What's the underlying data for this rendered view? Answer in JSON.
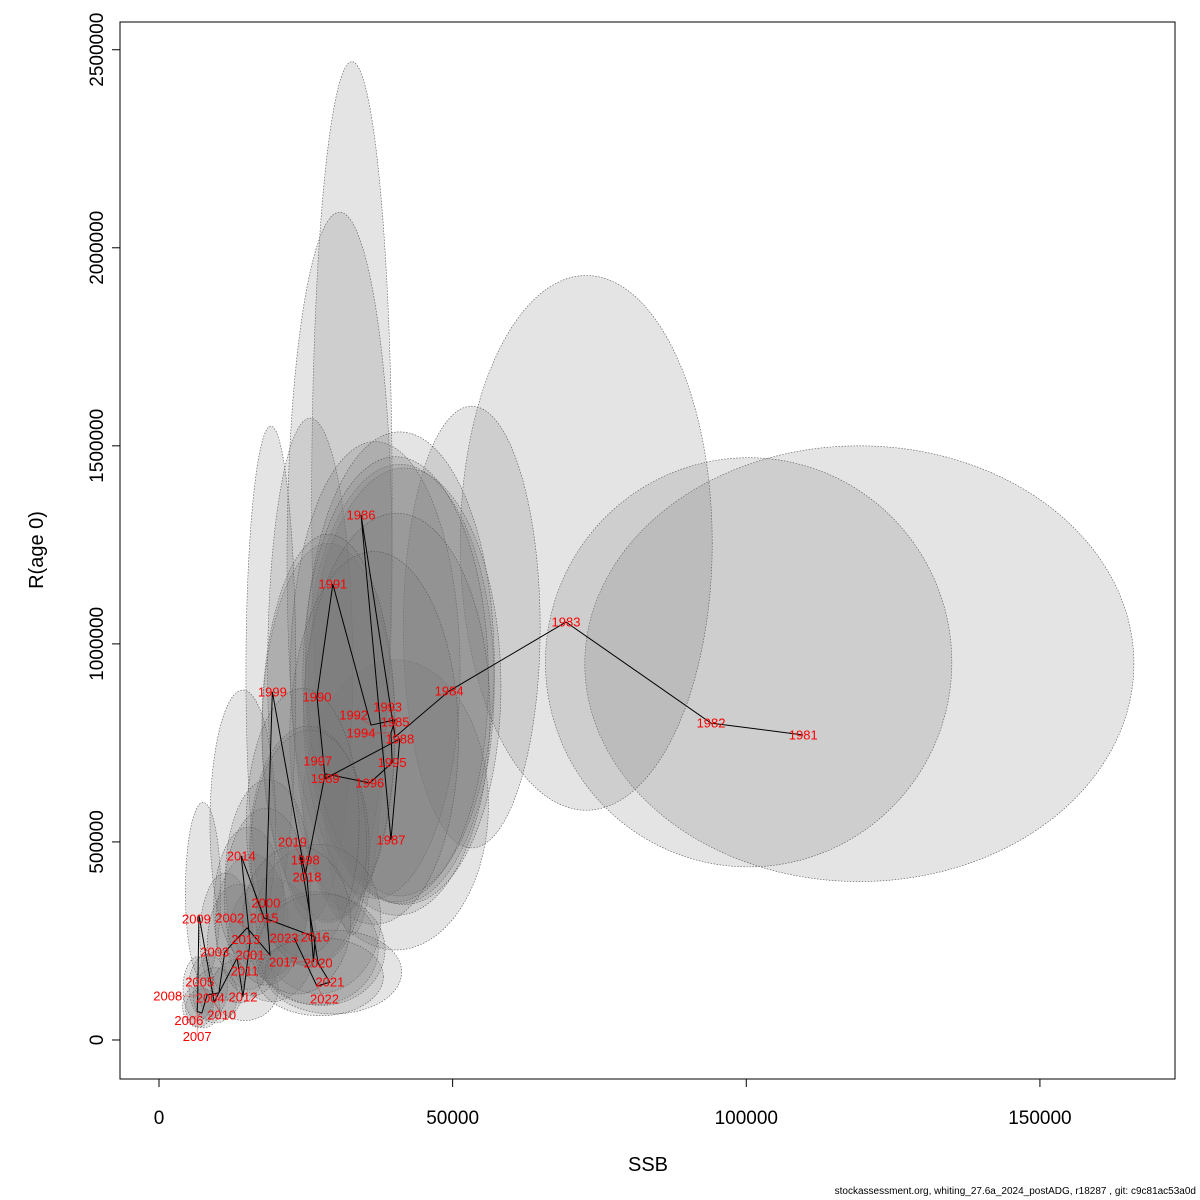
{
  "chart_data": {
    "type": "scatter",
    "xlabel": "SSB",
    "ylabel": "R(age 0)",
    "xlim": [
      -6640,
      173000
    ],
    "ylim": [
      -98500,
      2570000
    ],
    "xticks": [
      0,
      50000,
      100000,
      150000
    ],
    "xtick_labels": [
      "0",
      "50000",
      "100000",
      "150000"
    ],
    "yticks": [
      0,
      500000,
      1000000,
      1500000,
      2000000,
      2500000
    ],
    "ytick_labels": [
      "0",
      "500000",
      "1000000",
      "1500000",
      "2000000",
      "2500000"
    ],
    "grid": false,
    "points": [
      {
        "year": "1981",
        "ssb": 109700,
        "r": 770000
      },
      {
        "year": "1982",
        "ssb": 94000,
        "r": 800000
      },
      {
        "year": "1983",
        "ssb": 69300,
        "r": 1055000
      },
      {
        "year": "1984",
        "ssb": 49400,
        "r": 881000
      },
      {
        "year": "1985",
        "ssb": 40200,
        "r": 765000
      },
      {
        "year": "1986",
        "ssb": 34400,
        "r": 1326000
      },
      {
        "year": "1987",
        "ssb": 39500,
        "r": 505000
      },
      {
        "year": "1988",
        "ssb": 41000,
        "r": 760000
      },
      {
        "year": "1989",
        "ssb": 28300,
        "r": 660000
      },
      {
        "year": "1990",
        "ssb": 26900,
        "r": 866000
      },
      {
        "year": "1991",
        "ssb": 29600,
        "r": 1151000
      },
      {
        "year": "1992",
        "ssb": 36100,
        "r": 795000
      },
      {
        "year": "1993",
        "ssb": 40200,
        "r": 808000
      },
      {
        "year": "1994",
        "ssb": 39500,
        "r": 775000
      },
      {
        "year": "1995",
        "ssb": 39700,
        "r": 700000
      },
      {
        "year": "1996",
        "ssb": 35900,
        "r": 649000
      },
      {
        "year": "1997",
        "ssb": 28300,
        "r": 672000
      },
      {
        "year": "1998",
        "ssb": 24900,
        "r": 417000
      },
      {
        "year": "1999",
        "ssb": 19300,
        "r": 879000
      },
      {
        "year": "2000",
        "ssb": 18200,
        "r": 346000
      },
      {
        "year": "2001",
        "ssb": 18900,
        "r": 215000
      },
      {
        "year": "2002",
        "ssb": 15000,
        "r": 283000
      },
      {
        "year": "2003",
        "ssb": 11200,
        "r": 222000
      },
      {
        "year": "2004",
        "ssb": 10200,
        "r": 119000
      },
      {
        "year": "2005",
        "ssb": 8200,
        "r": 114000
      },
      {
        "year": "2006",
        "ssb": 7300,
        "r": 68000
      },
      {
        "year": "2007",
        "ssb": 6500,
        "r": 72000
      },
      {
        "year": "2008",
        "ssb": 6600,
        "r": 111000
      },
      {
        "year": "2009",
        "ssb": 6800,
        "r": 316000
      },
      {
        "year": "2010",
        "ssb": 9400,
        "r": 96000
      },
      {
        "year": "2011",
        "ssb": 13300,
        "r": 207000
      },
      {
        "year": "2012",
        "ssb": 14300,
        "r": 109000
      },
      {
        "year": "2013",
        "ssb": 15500,
        "r": 247000
      },
      {
        "year": "2014",
        "ssb": 14000,
        "r": 465000
      },
      {
        "year": "2015",
        "ssb": 17900,
        "r": 308000
      },
      {
        "year": "2016",
        "ssb": 26600,
        "r": 260000
      },
      {
        "year": "2017",
        "ssb": 26300,
        "r": 197000
      },
      {
        "year": "2018",
        "ssb": 25200,
        "r": 412000
      },
      {
        "year": "2019",
        "ssb": 24000,
        "r": 467000
      },
      {
        "year": "2020",
        "ssb": 27100,
        "r": 194000
      },
      {
        "year": "2021",
        "ssb": 29100,
        "r": 146000
      },
      {
        "year": "2022",
        "ssb": 26900,
        "r": 136000
      },
      {
        "year": "2023",
        "ssb": 23000,
        "r": 258000
      }
    ],
    "ellipses": {
      "1981": [
        72500,
        166000,
        400000,
        1500000
      ],
      "1982": [
        65800,
        135000,
        437000,
        1470000
      ],
      "1983": [
        51300,
        94200,
        580000,
        1930000
      ],
      "1984": [
        41600,
        64900,
        485000,
        1600000
      ],
      "1986": [
        26000,
        39700,
        265000,
        2470000
      ],
      "1991": [
        21800,
        39700,
        330000,
        2090000
      ],
      "1999": [
        14800,
        23300,
        300000,
        1550000
      ],
      "1990": [
        18500,
        33000,
        300000,
        1570000
      ],
      "2009": [
        4500,
        10500,
        150000,
        600000
      ]
    }
  },
  "footer": "stockassessment.org, whiting_27.6a_2024_postADG, r18287 , git: c9c81ac53a0d"
}
